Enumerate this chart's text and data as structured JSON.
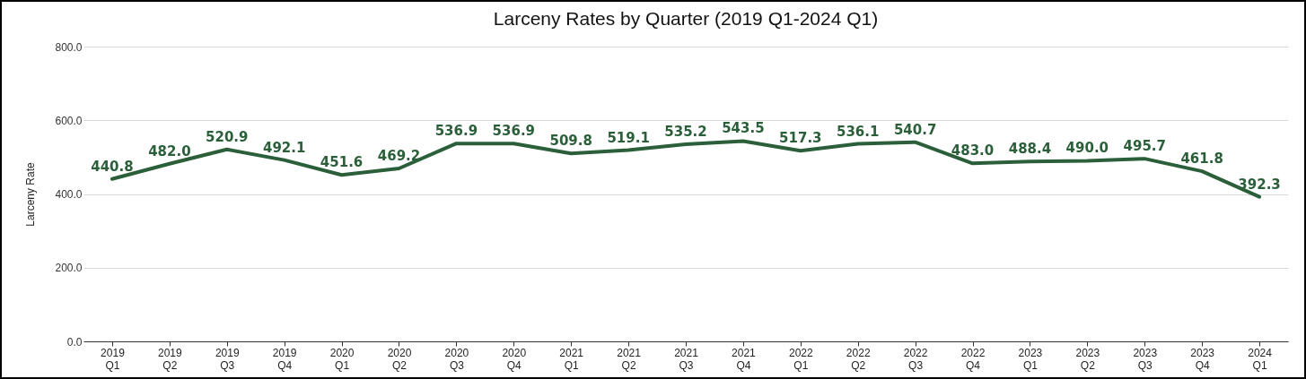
{
  "chart_data": {
    "type": "line",
    "title": "Larceny Rates by Quarter (2019 Q1-2024 Q1)",
    "ylabel": "Larceny Rate",
    "categories": [
      "2019 Q1",
      "2019 Q2",
      "2019 Q3",
      "2019 Q4",
      "2020 Q1",
      "2020 Q2",
      "2020 Q3",
      "2020 Q4",
      "2021 Q1",
      "2021 Q2",
      "2021 Q3",
      "2021 Q4",
      "2022 Q1",
      "2022 Q2",
      "2022 Q3",
      "2022 Q4",
      "2023 Q1",
      "2023 Q2",
      "2023 Q3",
      "2023 Q4",
      "2024 Q1"
    ],
    "series": [
      {
        "color": "#2a5f3a",
        "values": [
          440.8,
          482.0,
          520.9,
          492.1,
          451.6,
          469.2,
          536.9,
          536.9,
          509.8,
          519.1,
          535.2,
          543.5,
          517.3,
          536.1,
          540.7,
          483.0,
          488.4,
          490.0,
          495.7,
          461.8,
          392.3
        ],
        "value_labels": [
          "440.8",
          "482.0",
          "520.9",
          "492.1",
          "451.6",
          "469.2",
          "536.9",
          "536.9",
          "509.8",
          "519.1",
          "535.2",
          "543.5",
          "517.3",
          "536.1",
          "540.7",
          "483.0",
          "488.4",
          "490.0",
          "495.7",
          "461.8",
          "392.3"
        ]
      }
    ],
    "ylim": [
      0,
      800
    ],
    "yticks": [
      {
        "value": 0,
        "label": "0.0"
      },
      {
        "value": 200,
        "label": "200.0"
      },
      {
        "value": 400,
        "label": "400.0"
      },
      {
        "value": 600,
        "label": "600.0"
      },
      {
        "value": 800,
        "label": "800.0"
      }
    ],
    "grid": "y",
    "marker": "none",
    "line_style": "solid"
  }
}
